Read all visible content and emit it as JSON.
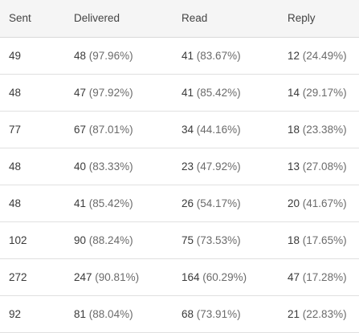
{
  "table": {
    "headers": [
      "Sent",
      "Delivered",
      "Read",
      "Reply"
    ],
    "rows": [
      {
        "sent": "49",
        "delivered": "48",
        "delivered_pct": "(97.96%)",
        "read": "41",
        "read_pct": "(83.67%)",
        "reply": "12",
        "reply_pct": "(24.49%)"
      },
      {
        "sent": "48",
        "delivered": "47",
        "delivered_pct": "(97.92%)",
        "read": "41",
        "read_pct": "(85.42%)",
        "reply": "14",
        "reply_pct": "(29.17%)"
      },
      {
        "sent": "77",
        "delivered": "67",
        "delivered_pct": "(87.01%)",
        "read": "34",
        "read_pct": "(44.16%)",
        "reply": "18",
        "reply_pct": "(23.38%)"
      },
      {
        "sent": "48",
        "delivered": "40",
        "delivered_pct": "(83.33%)",
        "read": "23",
        "read_pct": "(47.92%)",
        "reply": "13",
        "reply_pct": "(27.08%)"
      },
      {
        "sent": "48",
        "delivered": "41",
        "delivered_pct": "(85.42%)",
        "read": "26",
        "read_pct": "(54.17%)",
        "reply": "20",
        "reply_pct": "(41.67%)"
      },
      {
        "sent": "102",
        "delivered": "90",
        "delivered_pct": "(88.24%)",
        "read": "75",
        "read_pct": "(73.53%)",
        "reply": "18",
        "reply_pct": "(17.65%)"
      },
      {
        "sent": "272",
        "delivered": "247",
        "delivered_pct": "(90.81%)",
        "read": "164",
        "read_pct": "(60.29%)",
        "reply": "47",
        "reply_pct": "(17.28%)"
      },
      {
        "sent": "92",
        "delivered": "81",
        "delivered_pct": "(88.04%)",
        "read": "68",
        "read_pct": "(73.91%)",
        "reply": "21",
        "reply_pct": "(22.83%)"
      }
    ]
  }
}
